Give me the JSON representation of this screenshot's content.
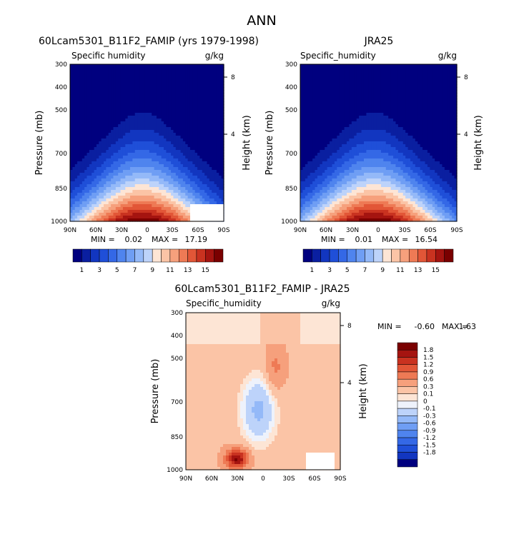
{
  "figure_title": "ANN",
  "chart_data": [
    {
      "type": "heatmap",
      "title": "60Lcam5301_B11F2_FAMIP (yrs 1979-1998)",
      "subtitle": "Specific humidity",
      "units": "g/kg",
      "ylabel": "Pressure (mb)",
      "ylabel_right": "Height (km)",
      "x_ticks": [
        "90N",
        "60N",
        "30N",
        "0",
        "30S",
        "60S",
        "90S"
      ],
      "y_ticks": [
        "300",
        "400",
        "500",
        "700",
        "850",
        "1000"
      ],
      "y_ticks_right": [
        "8",
        "4"
      ],
      "min_label": "MIN =",
      "min_value": "0.02",
      "max_label": "MAX =",
      "max_value": "17.19",
      "colorbar_labels": [
        "1",
        "3",
        "5",
        "7",
        "9",
        "11",
        "13",
        "15"
      ],
      "peak_value": 17.19,
      "ylim": [
        300,
        1000
      ],
      "xlim": [
        90,
        -90
      ]
    },
    {
      "type": "heatmap",
      "title": "JRA25",
      "subtitle": "Specific_humidity",
      "units": "g/kg",
      "ylabel": "Pressure (mb)",
      "ylabel_right": "Height (km)",
      "x_ticks": [
        "90N",
        "60N",
        "30N",
        "0",
        "30S",
        "60S",
        "90S"
      ],
      "y_ticks": [
        "300",
        "400",
        "500",
        "700",
        "850",
        "1000"
      ],
      "y_ticks_right": [
        "8",
        "4"
      ],
      "min_label": "MIN =",
      "min_value": "0.01",
      "max_label": "MAX =",
      "max_value": "16.54",
      "colorbar_labels": [
        "1",
        "3",
        "5",
        "7",
        "9",
        "11",
        "13",
        "15"
      ],
      "peak_value": 16.54,
      "ylim": [
        300,
        1000
      ],
      "xlim": [
        90,
        -90
      ]
    },
    {
      "type": "heatmap",
      "title": "60Lcam5301_B11F2_FAMIP - JRA25",
      "subtitle": "Specific_humidity",
      "units": "g/kg",
      "ylabel": "Pressure (mb)",
      "ylabel_right": "Height (km)",
      "x_ticks": [
        "90N",
        "60N",
        "30N",
        "0",
        "30S",
        "60S",
        "90S"
      ],
      "y_ticks": [
        "300",
        "400",
        "500",
        "700",
        "850",
        "1000"
      ],
      "y_ticks_right": [
        "8",
        "4"
      ],
      "min_label": "MIN =",
      "min_value": "-0.60",
      "max_label": "MAX =",
      "max_value": "1.63",
      "colorbar_labels": [
        "1.8",
        "1.5",
        "1.2",
        "0.9",
        "0.6",
        "0.3",
        "0.1",
        "0",
        "-0.1",
        "-0.3",
        "-0.6",
        "-0.9",
        "-1.2",
        "-1.5",
        "-1.8"
      ],
      "ylim": [
        300,
        1000
      ],
      "xlim": [
        90,
        -90
      ]
    }
  ],
  "palette_abs": [
    "#00007f",
    "#0a1fa0",
    "#1236c0",
    "#1f4fd8",
    "#3468e6",
    "#4f84ee",
    "#6f9ef4",
    "#94b9f8",
    "#bdd3fa",
    "#fde5d5",
    "#fbc4a6",
    "#f6a07c",
    "#ee7a55",
    "#e25637",
    "#c93220",
    "#a51410",
    "#7a0000"
  ],
  "palette_diff": [
    "#7a0000",
    "#a51410",
    "#c93220",
    "#e25637",
    "#ee7a55",
    "#f6a07c",
    "#fbc4a6",
    "#fde5d5",
    "#eef2fb",
    "#bdd3fa",
    "#94b9f8",
    "#6f9ef4",
    "#4f84ee",
    "#3468e6",
    "#1f4fd8",
    "#1236c0",
    "#00007f"
  ]
}
